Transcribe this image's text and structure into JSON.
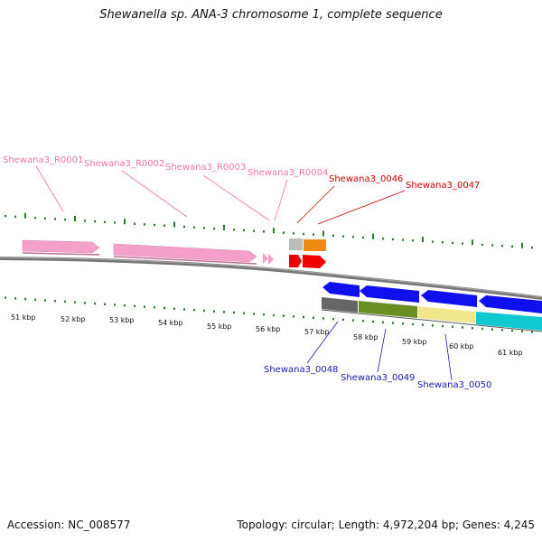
{
  "title": "Shewanella sp. ANA-3 chromosome 1, complete sequence",
  "accession_text": "Accession: NC_008577",
  "topology_text": "Topology: circular; Length: 4,972,204 bp; Genes: 4,245",
  "colors": {
    "rna_label": "#ee77aa",
    "forward_label": "#cc0000",
    "reverse_label": "#1a1aaa",
    "tick": "#2a7d2a",
    "backbone": "#777777"
  },
  "kbp_labels": [
    "51 kbp",
    "52 kbp",
    "53 kbp",
    "54 kbp",
    "55 kbp",
    "56 kbp",
    "57 kbp",
    "58 kbp",
    "59 kbp",
    "60 kbp",
    "61 kbp"
  ],
  "feature_labels": {
    "rna": [
      "Shewana3_R0001",
      "Shewana3_R0002",
      "Shewana3_R0003",
      "Shewana3_R0004"
    ],
    "forward": [
      "Shewana3_0046",
      "Shewana3_0047"
    ],
    "reverse": [
      "Shewana3_0048",
      "Shewana3_0049",
      "Shewana3_0050"
    ]
  }
}
